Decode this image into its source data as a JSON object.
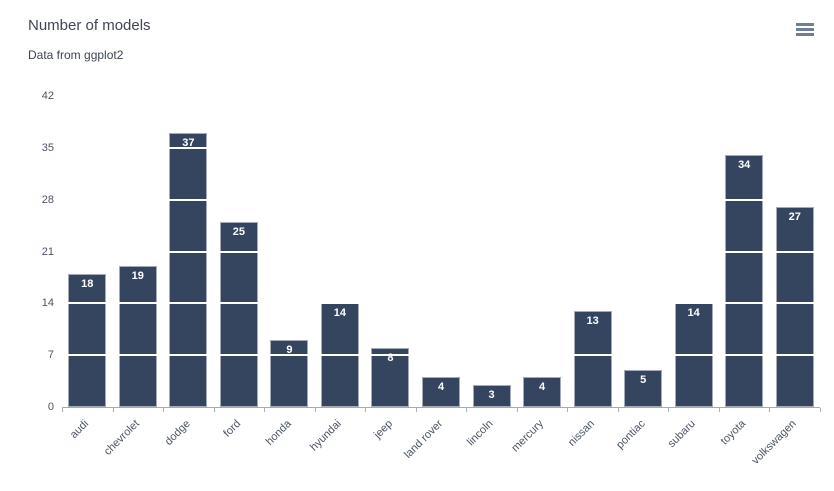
{
  "header": {
    "title": "Number of models",
    "subtitle": "Data from ggplot2"
  },
  "toolbar": {
    "context_menu_icon": "hamburger-menu-icon"
  },
  "chart_data": {
    "type": "bar",
    "title": "Number of models",
    "subtitle": "Data from ggplot2",
    "categories": [
      "audi",
      "chevrolet",
      "dodge",
      "ford",
      "honda",
      "hyundai",
      "jeep",
      "land rover",
      "lincoln",
      "mercury",
      "nissan",
      "pontiac",
      "subaru",
      "toyota",
      "volkswagen"
    ],
    "values": [
      18,
      19,
      37,
      25,
      9,
      14,
      8,
      4,
      3,
      4,
      13,
      5,
      14,
      34,
      27
    ],
    "xlabel": "",
    "ylabel": "",
    "ylim": [
      0,
      42
    ],
    "yticks": [
      0,
      7,
      14,
      21,
      28,
      35,
      42
    ],
    "grid": "white horizontal gridlines drawn over bars",
    "legend": "none",
    "x_label_rotation_deg": -45,
    "data_labels": "white values inside bar tops",
    "colors": {
      "bar": "#35455f",
      "data_label": "#ffffff",
      "gridline": "#ffffff",
      "axis_line": "#a3adb8",
      "axis_text": "#4a5461",
      "title_text": "#3e4652",
      "menu_icon": "#6e7f95",
      "background": "#ffffff"
    }
  }
}
